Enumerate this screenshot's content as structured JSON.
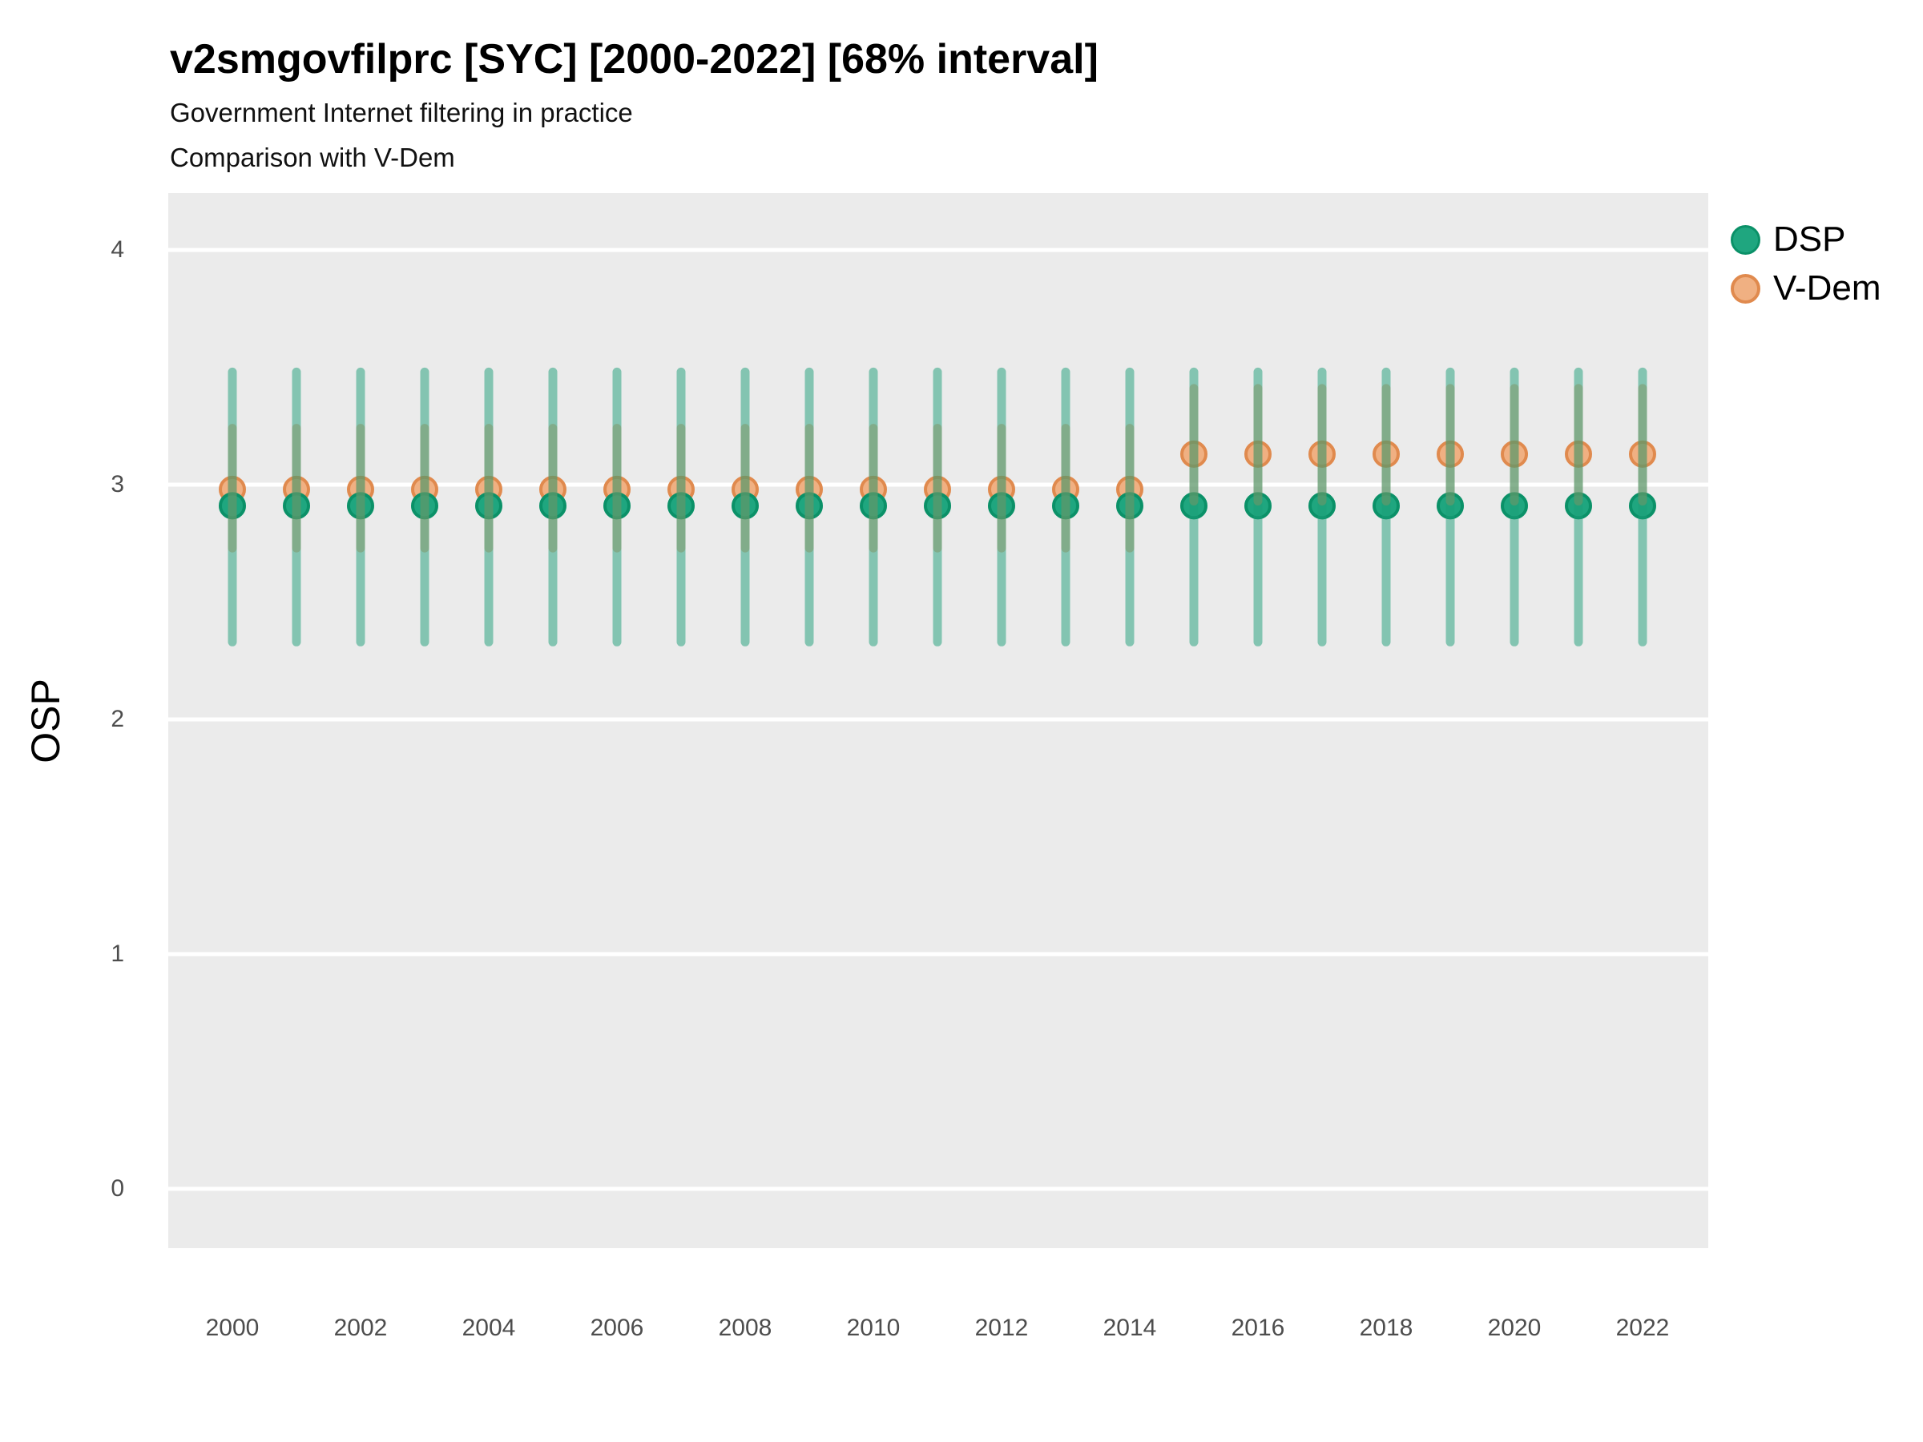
{
  "chart_data": {
    "type": "scatter",
    "title": "v2smgovfilprc [SYC] [2000-2022] [68% interval]",
    "subtitle1": "Government Internet filtering in practice",
    "subtitle2": "Comparison with V-Dem",
    "ylabel": "OSP",
    "xlabel": "",
    "years": [
      2000,
      2001,
      2002,
      2003,
      2004,
      2005,
      2006,
      2007,
      2008,
      2009,
      2010,
      2011,
      2012,
      2013,
      2014,
      2015,
      2016,
      2017,
      2018,
      2019,
      2020,
      2021,
      2022
    ],
    "x_tick_years": [
      2000,
      2002,
      2004,
      2006,
      2008,
      2010,
      2012,
      2014,
      2016,
      2018,
      2020,
      2022
    ],
    "y_ticks": [
      0,
      1,
      2,
      3,
      4
    ],
    "ylim": [
      -0.25,
      4.24
    ],
    "grid": "major-horizontal-only",
    "legend_position": "right",
    "interval_level": "68%",
    "series": [
      {
        "id": "dsp",
        "name": "DSP",
        "values": [
          2.91,
          2.91,
          2.91,
          2.91,
          2.91,
          2.91,
          2.91,
          2.91,
          2.91,
          2.91,
          2.91,
          2.91,
          2.91,
          2.91,
          2.91,
          2.91,
          2.91,
          2.91,
          2.91,
          2.91,
          2.91,
          2.91,
          2.91
        ],
        "lower": [
          2.33,
          2.33,
          2.33,
          2.33,
          2.33,
          2.33,
          2.33,
          2.33,
          2.33,
          2.33,
          2.33,
          2.33,
          2.33,
          2.33,
          2.33,
          2.33,
          2.33,
          2.33,
          2.33,
          2.33,
          2.33,
          2.33,
          2.33
        ],
        "upper": [
          3.48,
          3.48,
          3.48,
          3.48,
          3.48,
          3.48,
          3.48,
          3.48,
          3.48,
          3.48,
          3.48,
          3.48,
          3.48,
          3.48,
          3.48,
          3.48,
          3.48,
          3.48,
          3.48,
          3.48,
          3.48,
          3.48,
          3.48
        ],
        "point_fill": "#1FA67F",
        "point_stroke": "#0B9168",
        "bar_color": "rgba(27,158,119,0.5)"
      },
      {
        "id": "vdem",
        "name": "V-Dem",
        "values": [
          2.98,
          2.98,
          2.98,
          2.98,
          2.98,
          2.98,
          2.98,
          2.98,
          2.98,
          2.98,
          2.98,
          2.98,
          2.98,
          2.98,
          2.98,
          3.13,
          3.13,
          3.13,
          3.13,
          3.13,
          3.13,
          3.13,
          3.13
        ],
        "lower": [
          2.73,
          2.73,
          2.73,
          2.73,
          2.73,
          2.73,
          2.73,
          2.73,
          2.73,
          2.73,
          2.73,
          2.73,
          2.73,
          2.73,
          2.73,
          2.93,
          2.93,
          2.93,
          2.93,
          2.93,
          2.93,
          2.93,
          2.93
        ],
        "upper": [
          3.24,
          3.24,
          3.24,
          3.24,
          3.24,
          3.24,
          3.24,
          3.24,
          3.24,
          3.24,
          3.24,
          3.24,
          3.24,
          3.24,
          3.24,
          3.41,
          3.41,
          3.41,
          3.41,
          3.41,
          3.41,
          3.41,
          3.41
        ],
        "point_fill": "#F0B082",
        "point_stroke": "#E08A4E",
        "bar_color": "rgba(226,140,77,0.5)"
      }
    ],
    "colors": {
      "panel_bg": "#EBEBEB",
      "gridline": "#FFFFFF",
      "tick_label": "#4D4D4D",
      "text": "#000000"
    }
  }
}
